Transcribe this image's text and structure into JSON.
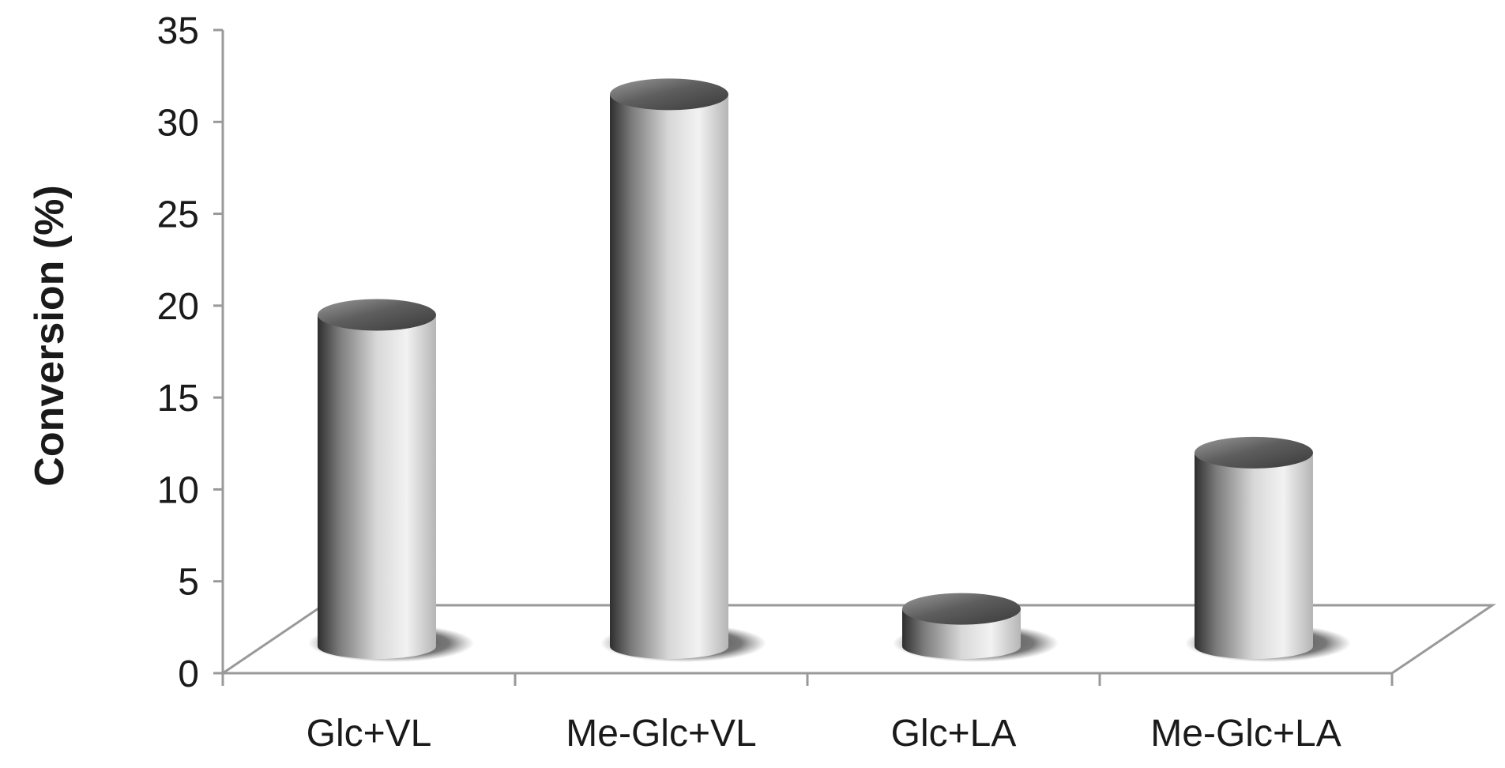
{
  "chart_data": {
    "type": "bar",
    "style": "3d-cylinder",
    "title": "",
    "xlabel": "",
    "ylabel": "Conversion (%)",
    "categories": [
      "Glc+VL",
      "Me-Glc+VL",
      "Glc+LA",
      "Me-Glc+LA"
    ],
    "values": [
      19.5,
      31.5,
      3.5,
      12
    ],
    "ylim": [
      0,
      35
    ],
    "yticks": [
      "0",
      "5",
      "10",
      "15",
      "20",
      "25",
      "30",
      "35"
    ],
    "grid": false,
    "legend": "none",
    "colors": {
      "axis": "#999999",
      "bar_dark": "#3a3a3a",
      "bar_light": "#ededed",
      "top_light": "#d9d9d9",
      "top_dark": "#6a6a6a",
      "shadow": "#555555",
      "text": "#1a1a1a"
    }
  }
}
